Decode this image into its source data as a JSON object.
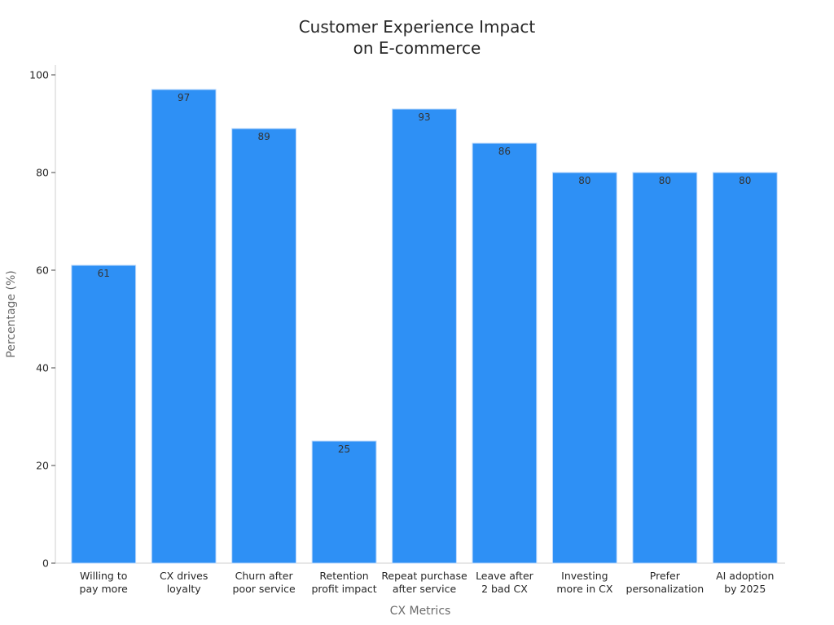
{
  "chart_data": {
    "type": "bar",
    "title": [
      "Customer Experience Impact",
      "on E-commerce"
    ],
    "xlabel": "CX Metrics",
    "ylabel": "Percentage (%)",
    "ylim": [
      0,
      102
    ],
    "yticks": [
      0,
      20,
      40,
      60,
      80,
      100
    ],
    "categories": [
      [
        "Willing to",
        "pay more"
      ],
      [
        "CX drives",
        "loyalty"
      ],
      [
        "Churn after",
        "poor service"
      ],
      [
        "Retention",
        "profit impact"
      ],
      [
        "Repeat purchase",
        "after service"
      ],
      [
        "Leave after",
        "2 bad CX"
      ],
      [
        "Investing",
        "more in CX"
      ],
      [
        "Prefer",
        "personalization"
      ],
      [
        "AI adoption",
        "by 2025"
      ]
    ],
    "values": [
      61,
      97,
      89,
      25,
      93,
      86,
      80,
      80,
      80
    ],
    "bar_color": "#2e90f5",
    "grid": false,
    "legend": "none"
  }
}
